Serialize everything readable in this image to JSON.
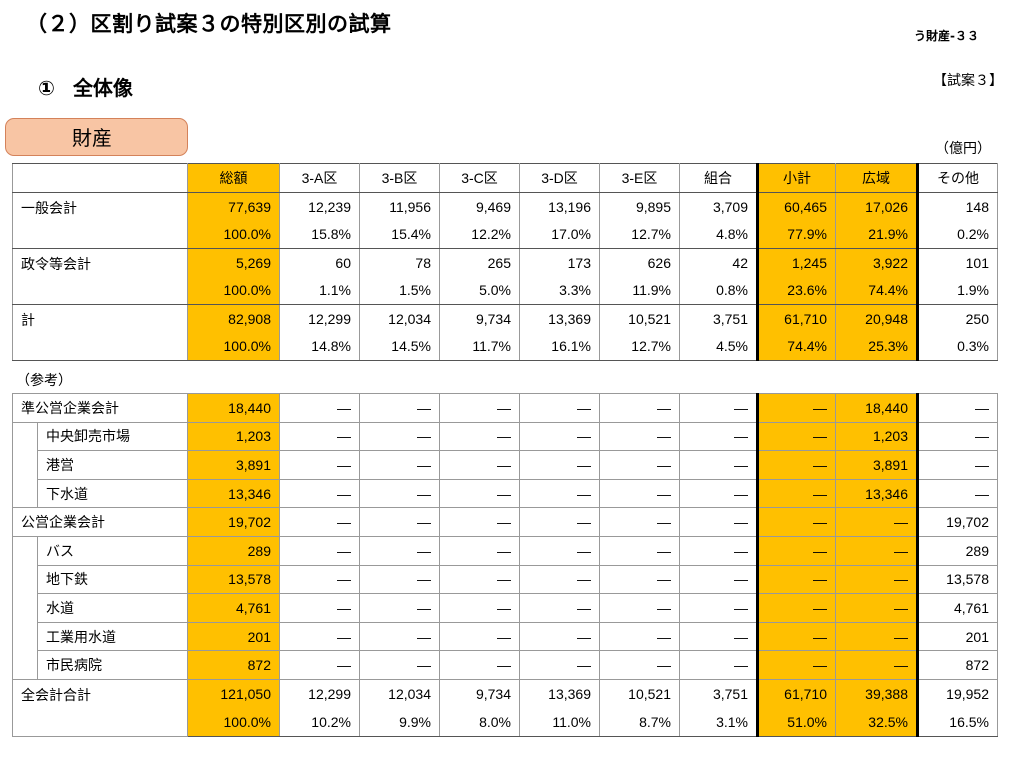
{
  "header": {
    "title": "（２）区割り試案３の特別区別の試算",
    "page_id": "う財産-３３",
    "section_number": "①",
    "section_title": "全体像",
    "plan_tag": "【試案３】",
    "category_label": "財産",
    "unit": "（億円）"
  },
  "colors": {
    "highlight": "#ffc000",
    "pill_fill": "#f8c5a4",
    "pill_border": "#d4825a"
  },
  "table": {
    "columns": [
      "",
      "総額",
      "3-A区",
      "3-B区",
      "3-C区",
      "3-D区",
      "3-E区",
      "組合",
      "小計",
      "広域",
      "その他"
    ],
    "rows": [
      {
        "label": "一般会計",
        "values": [
          "77,639",
          "12,239",
          "11,956",
          "9,469",
          "13,196",
          "9,895",
          "3,709",
          "60,465",
          "17,026",
          "148"
        ],
        "pct": [
          "100.0%",
          "15.8%",
          "15.4%",
          "12.2%",
          "17.0%",
          "12.7%",
          "4.8%",
          "77.9%",
          "21.9%",
          "0.2%"
        ]
      },
      {
        "label": "政令等会計",
        "values": [
          "5,269",
          "60",
          "78",
          "265",
          "173",
          "626",
          "42",
          "1,245",
          "3,922",
          "101"
        ],
        "pct": [
          "100.0%",
          "1.1%",
          "1.5%",
          "5.0%",
          "3.3%",
          "11.9%",
          "0.8%",
          "23.6%",
          "74.4%",
          "1.9%"
        ]
      },
      {
        "label": "計",
        "values": [
          "82,908",
          "12,299",
          "12,034",
          "9,734",
          "13,369",
          "10,521",
          "3,751",
          "61,710",
          "20,948",
          "250"
        ],
        "pct": [
          "100.0%",
          "14.8%",
          "14.5%",
          "11.7%",
          "16.1%",
          "12.7%",
          "4.5%",
          "74.4%",
          "25.3%",
          "0.3%"
        ]
      }
    ]
  },
  "reference": {
    "label": "（参考）",
    "rows": [
      {
        "label": "準公営企業会計",
        "indent": false,
        "values": [
          "18,440",
          "—",
          "—",
          "—",
          "—",
          "—",
          "—",
          "—",
          "18,440",
          "—"
        ]
      },
      {
        "label": "中央卸売市場",
        "indent": true,
        "values": [
          "1,203",
          "—",
          "—",
          "—",
          "—",
          "—",
          "—",
          "—",
          "1,203",
          "—"
        ]
      },
      {
        "label": "港営",
        "indent": true,
        "values": [
          "3,891",
          "—",
          "—",
          "—",
          "—",
          "—",
          "—",
          "—",
          "3,891",
          "—"
        ]
      },
      {
        "label": "下水道",
        "indent": true,
        "values": [
          "13,346",
          "—",
          "—",
          "—",
          "—",
          "—",
          "—",
          "—",
          "13,346",
          "—"
        ]
      },
      {
        "label": "公営企業会計",
        "indent": false,
        "values": [
          "19,702",
          "—",
          "—",
          "—",
          "—",
          "—",
          "—",
          "—",
          "—",
          "19,702"
        ]
      },
      {
        "label": "バス",
        "indent": true,
        "values": [
          "289",
          "—",
          "—",
          "—",
          "—",
          "—",
          "—",
          "—",
          "—",
          "289"
        ]
      },
      {
        "label": "地下鉄",
        "indent": true,
        "values": [
          "13,578",
          "—",
          "—",
          "—",
          "—",
          "—",
          "—",
          "—",
          "—",
          "13,578"
        ]
      },
      {
        "label": "水道",
        "indent": true,
        "values": [
          "4,761",
          "—",
          "—",
          "—",
          "—",
          "—",
          "—",
          "—",
          "—",
          "4,761"
        ]
      },
      {
        "label": "工業用水道",
        "indent": true,
        "values": [
          "201",
          "—",
          "—",
          "—",
          "—",
          "—",
          "—",
          "—",
          "—",
          "201"
        ]
      },
      {
        "label": "市民病院",
        "indent": true,
        "values": [
          "872",
          "—",
          "—",
          "—",
          "—",
          "—",
          "—",
          "—",
          "—",
          "872"
        ]
      }
    ],
    "total": {
      "label": "全会計合計",
      "values": [
        "121,050",
        "12,299",
        "12,034",
        "9,734",
        "13,369",
        "10,521",
        "3,751",
        "61,710",
        "39,388",
        "19,952"
      ],
      "pct": [
        "100.0%",
        "10.2%",
        "9.9%",
        "8.0%",
        "11.0%",
        "8.7%",
        "3.1%",
        "51.0%",
        "32.5%",
        "16.5%"
      ]
    }
  }
}
